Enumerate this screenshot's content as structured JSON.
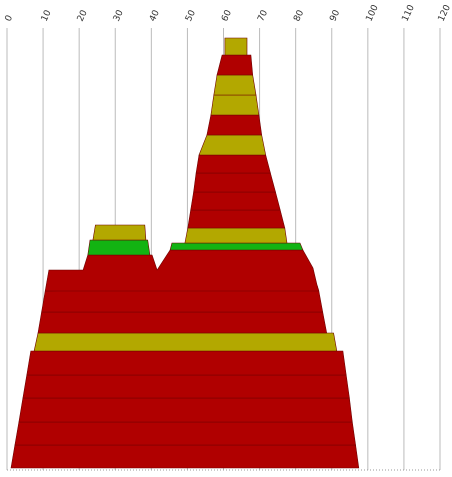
{
  "chart_data": {
    "type": "layers",
    "xlim": [
      0,
      120
    ],
    "xticks": [
      0,
      10,
      20,
      30,
      40,
      50,
      60,
      70,
      80,
      90,
      100,
      110,
      120
    ],
    "ylim": [
      0,
      442
    ],
    "grid": true,
    "layers": [
      {
        "color": "#b00000",
        "points": [
          [
            1.1,
            440
          ],
          [
            2.2,
            417
          ],
          [
            96.6,
            417
          ],
          [
            97.5,
            440
          ]
        ]
      },
      {
        "color": "#b00000",
        "points": [
          [
            2.2,
            417
          ],
          [
            3.3,
            394
          ],
          [
            95.7,
            394
          ],
          [
            96.6,
            417
          ]
        ]
      },
      {
        "color": "#b00000",
        "points": [
          [
            3.3,
            394
          ],
          [
            4.4,
            370
          ],
          [
            94.9,
            370
          ],
          [
            95.7,
            394
          ]
        ]
      },
      {
        "color": "#b00000",
        "points": [
          [
            4.4,
            370
          ],
          [
            5.5,
            347
          ],
          [
            94.0,
            347
          ],
          [
            94.9,
            370
          ]
        ]
      },
      {
        "color": "#b00000",
        "points": [
          [
            5.5,
            347
          ],
          [
            6.6,
            323
          ],
          [
            93.1,
            323
          ],
          [
            94.0,
            347
          ]
        ]
      },
      {
        "color": "#b3a800",
        "points": [
          [
            7.5,
            323
          ],
          [
            8.6,
            305
          ],
          [
            90.5,
            305
          ],
          [
            91.4,
            323
          ]
        ]
      },
      {
        "color": "#b00000",
        "points": [
          [
            8.6,
            305
          ],
          [
            9.6,
            284
          ],
          [
            87.5,
            284
          ],
          [
            88.6,
            305
          ]
        ]
      },
      {
        "color": "#b00000",
        "points": [
          [
            9.6,
            284
          ],
          [
            10.6,
            263
          ],
          [
            85.9,
            257
          ],
          [
            86.4,
            263
          ],
          [
            87.5,
            284
          ]
        ]
      },
      {
        "color": "#b00000",
        "points": [
          [
            10.6,
            263
          ],
          [
            11.6,
            242
          ],
          [
            21.1,
            242
          ],
          [
            22.4,
            227
          ],
          [
            40.2,
            227
          ],
          [
            41.6,
            242
          ],
          [
            45.2,
            222
          ],
          [
            82.0,
            222
          ],
          [
            84.8,
            240
          ],
          [
            85.9,
            257
          ],
          [
            86.4,
            263
          ]
        ]
      },
      {
        "color": "#12b312",
        "points": [
          [
            22.4,
            227
          ],
          [
            23.0,
            212
          ],
          [
            39.0,
            212
          ],
          [
            39.6,
            227
          ]
        ]
      },
      {
        "color": "#b3a800",
        "points": [
          [
            23.8,
            212
          ],
          [
            24.5,
            197
          ],
          [
            38.2,
            197
          ],
          [
            38.5,
            212
          ]
        ]
      },
      {
        "color": "#12b312",
        "points": [
          [
            45.2,
            222
          ],
          [
            45.7,
            215
          ],
          [
            81.2,
            215
          ],
          [
            82.0,
            222
          ]
        ]
      },
      {
        "color": "#b3a800",
        "points": [
          [
            49.3,
            215
          ],
          [
            50.1,
            200
          ],
          [
            77.0,
            200
          ],
          [
            77.6,
            215
          ]
        ]
      },
      {
        "color": "#b00000",
        "points": [
          [
            50.1,
            200
          ],
          [
            50.9,
            182
          ],
          [
            75.7,
            182
          ],
          [
            77.0,
            200
          ]
        ]
      },
      {
        "color": "#b00000",
        "points": [
          [
            50.9,
            182
          ],
          [
            51.7,
            164
          ],
          [
            74.4,
            164
          ],
          [
            75.7,
            182
          ]
        ]
      },
      {
        "color": "#b00000",
        "points": [
          [
            51.7,
            164
          ],
          [
            52.4,
            145
          ],
          [
            73.0,
            145
          ],
          [
            74.4,
            164
          ]
        ]
      },
      {
        "color": "#b00000",
        "points": [
          [
            52.4,
            145
          ],
          [
            53.2,
            127
          ],
          [
            71.7,
            127
          ],
          [
            73.0,
            145
          ]
        ]
      },
      {
        "color": "#b3a800",
        "points": [
          [
            53.2,
            127
          ],
          [
            55.4,
            107
          ],
          [
            70.6,
            107
          ],
          [
            71.7,
            127
          ]
        ]
      },
      {
        "color": "#b00000",
        "points": [
          [
            55.4,
            107
          ],
          [
            56.5,
            87
          ],
          [
            69.8,
            87
          ],
          [
            70.6,
            107
          ]
        ]
      },
      {
        "color": "#b3a800",
        "points": [
          [
            56.5,
            87
          ],
          [
            57.3,
            67
          ],
          [
            69.0,
            67
          ],
          [
            69.8,
            87
          ]
        ]
      },
      {
        "color": "#b3a800",
        "points": [
          [
            57.3,
            67
          ],
          [
            58.2,
            47
          ],
          [
            68.1,
            47
          ],
          [
            69.0,
            67
          ]
        ]
      },
      {
        "color": "#b00000",
        "points": [
          [
            58.2,
            47
          ],
          [
            59.6,
            27
          ],
          [
            67.6,
            27
          ],
          [
            68.1,
            47
          ]
        ]
      },
      {
        "color": "#b3a800",
        "points": [
          [
            60.4,
            27
          ],
          [
            60.4,
            10
          ],
          [
            66.5,
            10
          ],
          [
            66.5,
            27
          ]
        ]
      }
    ]
  }
}
